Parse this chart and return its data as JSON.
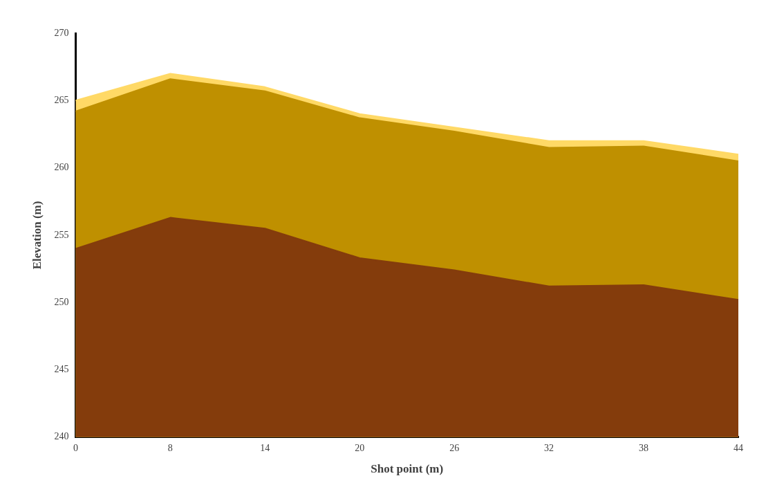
{
  "chart_data": {
    "type": "area",
    "xlabel": "Shot point (m)",
    "ylabel": "Elevation (m)",
    "categories": [
      "0",
      "8",
      "14",
      "20",
      "26",
      "32",
      "38",
      "44"
    ],
    "series": [
      {
        "color": "#ffd966",
        "values": [
          265,
          267,
          266,
          264,
          263,
          262,
          262,
          261
        ]
      },
      {
        "color": "#bf9000",
        "values": [
          264.2,
          266.6,
          265.7,
          263.7,
          262.7,
          261.5,
          261.6,
          260.5
        ]
      },
      {
        "color": "#843c0c",
        "values": [
          254,
          256.3,
          255.5,
          253.3,
          252.4,
          251.2,
          251.3,
          250.2
        ]
      }
    ],
    "ylim": [
      240,
      270
    ],
    "yticks": [
      240,
      245,
      250,
      255,
      260,
      265,
      270
    ],
    "grid": false,
    "legend": false,
    "marker": "none"
  }
}
